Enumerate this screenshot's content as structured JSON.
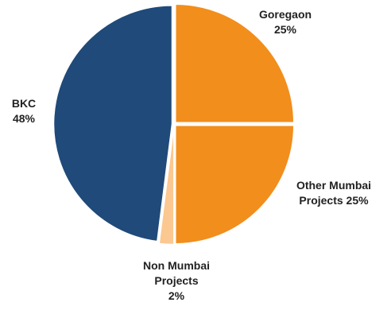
{
  "chart_data": {
    "type": "pie",
    "title": "",
    "legend": "none",
    "slices": [
      {
        "label_lines": [
          "Goregaon"
        ],
        "value_text": "25%",
        "value": 25,
        "color": "#F28E1C"
      },
      {
        "label_lines": [
          "Other Mumbai",
          "Projects"
        ],
        "value_text": "25%",
        "value": 25,
        "color": "#F28E1C"
      },
      {
        "label_lines": [
          "Non Mumbai",
          "Projects"
        ],
        "value_text": "2%",
        "value": 2,
        "color": "#FBC891"
      },
      {
        "label_lines": [
          "BKC"
        ],
        "value_text": "48%",
        "value": 48,
        "color": "#1F4A7A"
      }
    ]
  }
}
